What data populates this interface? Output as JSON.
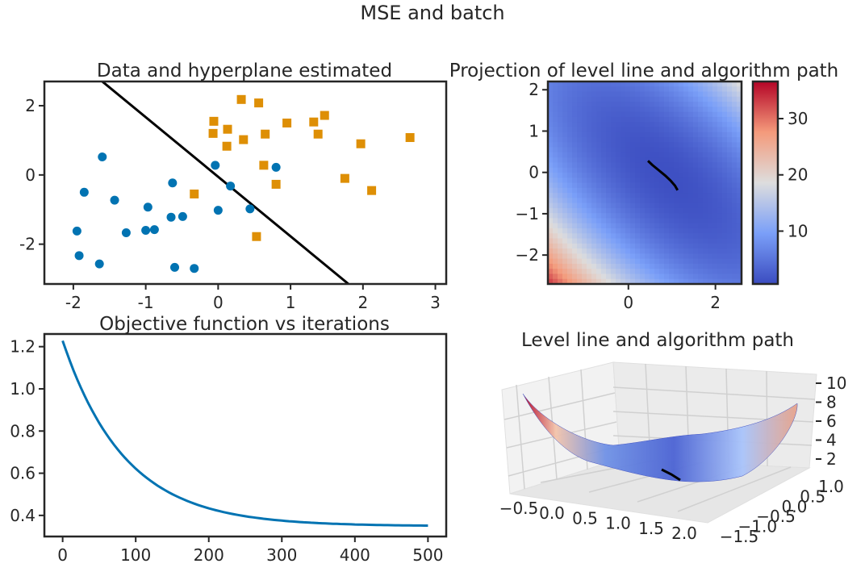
{
  "suptitle": "MSE and batch",
  "colors": {
    "blue": "#0173b2",
    "orange": "#de8f05",
    "line": "#000000",
    "cmap": "coolwarm"
  },
  "chart_data": [
    {
      "type": "scatter",
      "title": "Data and hyperplane estimated",
      "xlim": [
        -2.4,
        3.15
      ],
      "ylim": [
        -3.15,
        2.7
      ],
      "xticks": [
        "-2",
        "-1",
        "0",
        "1",
        "2",
        "3"
      ],
      "yticks": [
        "-2",
        "0",
        "2"
      ],
      "series": [
        {
          "marker": "circle",
          "color": "#0173b2",
          "points": [
            [
              -1.6,
              0.52
            ],
            [
              -1.85,
              -0.5
            ],
            [
              -1.43,
              -0.73
            ],
            [
              -0.97,
              -0.93
            ],
            [
              -1.95,
              -1.62
            ],
            [
              -1.92,
              -2.33
            ],
            [
              -1.64,
              -2.57
            ],
            [
              -1.27,
              -1.67
            ],
            [
              -1.0,
              -1.6
            ],
            [
              -0.88,
              -1.58
            ],
            [
              -0.63,
              -0.23
            ],
            [
              -0.65,
              -1.22
            ],
            [
              -0.49,
              -1.2
            ],
            [
              -0.6,
              -2.67
            ],
            [
              -0.33,
              -2.7
            ],
            [
              -0.04,
              0.28
            ],
            [
              0.0,
              -1.02
            ],
            [
              0.17,
              -0.32
            ],
            [
              0.44,
              -0.98
            ],
            [
              0.8,
              0.22
            ]
          ]
        },
        {
          "marker": "square",
          "color": "#de8f05",
          "points": [
            [
              -0.33,
              -0.55
            ],
            [
              -0.06,
              1.55
            ],
            [
              -0.07,
              1.2
            ],
            [
              0.13,
              1.32
            ],
            [
              0.12,
              0.83
            ],
            [
              0.32,
              2.18
            ],
            [
              0.35,
              1.02
            ],
            [
              0.56,
              2.08
            ],
            [
              0.65,
              1.18
            ],
            [
              0.63,
              0.28
            ],
            [
              0.8,
              -0.27
            ],
            [
              0.95,
              1.5
            ],
            [
              1.32,
              1.53
            ],
            [
              1.38,
              1.18
            ],
            [
              1.47,
              1.72
            ],
            [
              1.75,
              -0.1
            ],
            [
              1.97,
              0.9
            ],
            [
              2.12,
              -0.45
            ],
            [
              2.65,
              1.08
            ],
            [
              0.53,
              -1.78
            ]
          ]
        },
        {
          "name": "hyperplane",
          "type": "line",
          "color": "#000000",
          "points": [
            [
              -1.6,
              2.7
            ],
            [
              1.8,
              -3.15
            ]
          ]
        }
      ]
    },
    {
      "type": "heatmap",
      "title": "Projection of level line and algorithm path",
      "xlim": [
        -1.85,
        2.6
      ],
      "ylim": [
        -2.7,
        2.2
      ],
      "xticks": [
        "0",
        "2"
      ],
      "yticks": [
        "2",
        "1",
        "0",
        "−1",
        "−2"
      ],
      "colorbar": {
        "min": 0.6,
        "max": 36.6,
        "ticks": [
          "10",
          "20",
          "30"
        ]
      },
      "path": [
        [
          0.45,
          0.28
        ],
        [
          0.55,
          0.18
        ],
        [
          0.7,
          0.05
        ],
        [
          0.85,
          -0.08
        ],
        [
          0.97,
          -0.2
        ],
        [
          1.07,
          -0.32
        ],
        [
          1.13,
          -0.43
        ]
      ]
    },
    {
      "type": "line",
      "title": "Objective function vs iterations",
      "xlim": [
        -25,
        525
      ],
      "ylim": [
        0.3,
        1.26
      ],
      "xticks": [
        "0",
        "100",
        "200",
        "300",
        "400",
        "500"
      ],
      "yticks": [
        "1.2",
        "1.0",
        "0.8",
        "0.6",
        "0.4"
      ],
      "series": [
        {
          "color": "#0173b2",
          "x_start": 0,
          "x_end": 500,
          "y_start": 1.228,
          "y_limit": 0.349,
          "decay": 0.0117
        }
      ]
    },
    {
      "type": "surface",
      "title": "Level line and algorithm path",
      "xticks": [
        "−0.5",
        "0.0",
        "0.5",
        "1.0",
        "1.5",
        "2.0"
      ],
      "yticks": [
        "−1.5",
        "−1.0",
        "−0.5",
        "0.0",
        "0.5",
        "1.0"
      ],
      "zticks": [
        "2",
        "4",
        "6",
        "8",
        "10"
      ]
    }
  ]
}
